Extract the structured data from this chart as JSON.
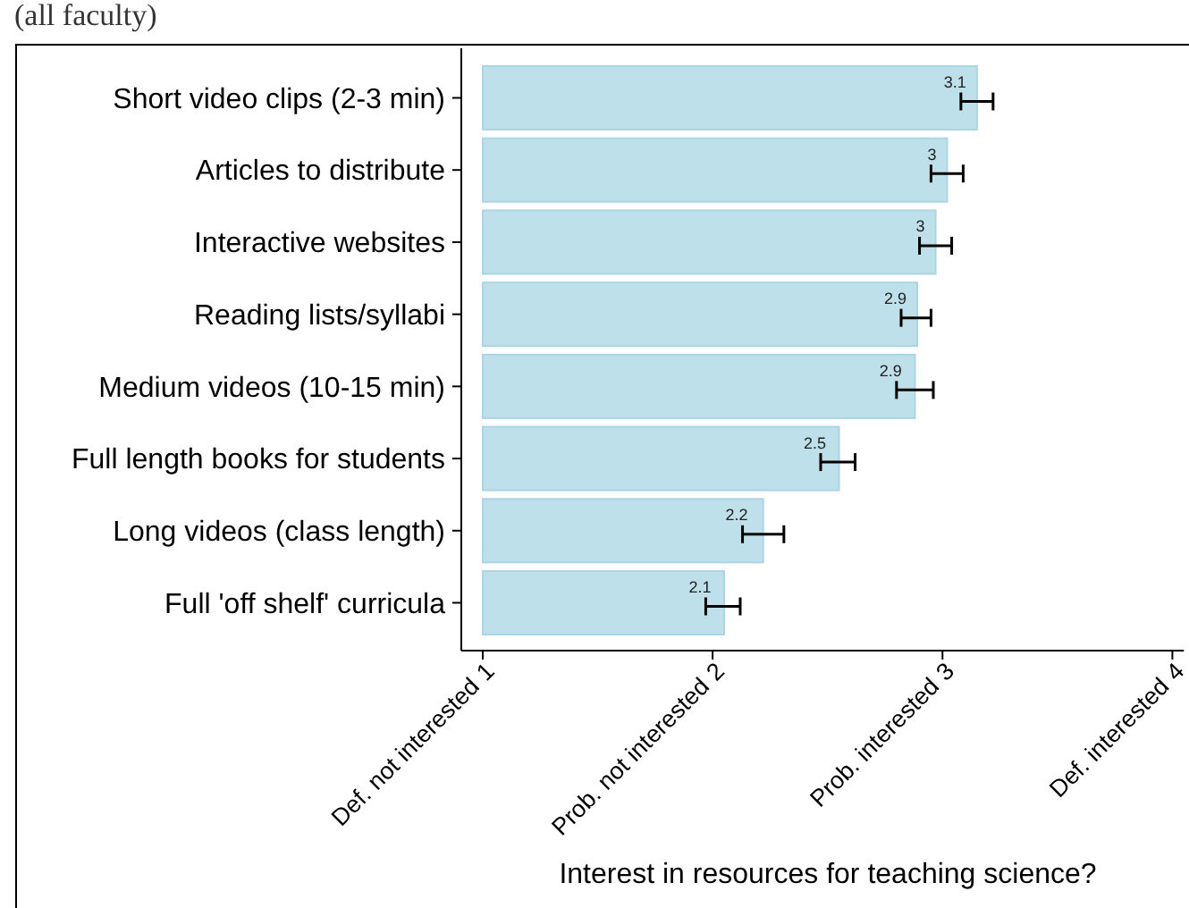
{
  "chart_data": {
    "type": "bar",
    "orientation": "horizontal",
    "subtitle": "(all faculty)",
    "categories": [
      "Short video clips (2-3 min)",
      "Articles to distribute",
      "Interactive websites",
      "Reading lists/syllabi",
      "Medium videos (10-15 min)",
      "Full length books for students",
      "Long videos (class length)",
      "Full 'off shelf' curricula"
    ],
    "values": [
      3.15,
      3.02,
      2.97,
      2.89,
      2.88,
      2.55,
      2.22,
      2.05
    ],
    "errors": [
      [
        3.08,
        3.22
      ],
      [
        2.95,
        3.09
      ],
      [
        2.9,
        3.04
      ],
      [
        2.82,
        2.95
      ],
      [
        2.8,
        2.96
      ],
      [
        2.47,
        2.62
      ],
      [
        2.13,
        2.31
      ],
      [
        1.97,
        2.12
      ]
    ],
    "value_labels": [
      "3.1",
      "3",
      "3",
      "2.9",
      "2.9",
      "2.5",
      "2.2",
      "2.1"
    ],
    "color": "#bde0ea",
    "xlim": [
      1,
      4.05
    ],
    "xticks": [
      1,
      2,
      3,
      4
    ],
    "annotations": [
      "Def. not interested",
      "Prob. not interested",
      "Prob. interested",
      "Def. interested",
      "Interest in resources for teaching science?"
    ],
    "grid": false
  }
}
